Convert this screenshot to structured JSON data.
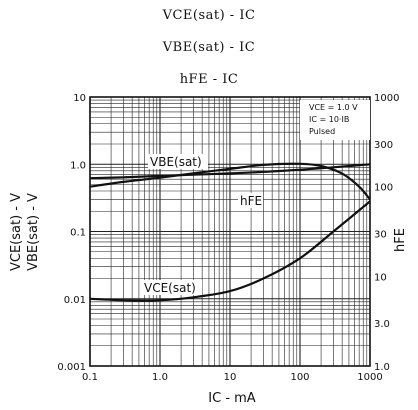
{
  "titles": {
    "line1": "VCE(sat) - IC",
    "line2": "VBE(sat) - IC",
    "line3": "hFE - IC"
  },
  "chart_data": {
    "type": "line",
    "x_scale": "log",
    "xlim": [
      0.1,
      1000
    ],
    "ylim_left": [
      0.001,
      10
    ],
    "ylim_right": [
      1,
      1000
    ],
    "y_scale": "log",
    "grid": true,
    "x_ticks": [
      "0.1",
      "1.0",
      "10",
      "100",
      "1000"
    ],
    "x_tick_values": [
      0.1,
      1,
      10,
      100,
      1000
    ],
    "y_left_ticks": [
      "10",
      "1.0",
      "0.1",
      "0.01",
      "0.001"
    ],
    "y_left_tick_values": [
      10,
      1,
      0.1,
      0.01,
      0.001
    ],
    "y_right_ticks": [
      "1000",
      "300",
      "100",
      "30",
      "10",
      "3.0",
      "1.0"
    ],
    "y_right_tick_values": [
      1000,
      300,
      100,
      30,
      10,
      3,
      1
    ],
    "xlabel": "IC - mA",
    "ylabel_left_line1": "VCE(sat) - V",
    "ylabel_left_line2": "VBE(sat) - V",
    "ylabel_right": "hFE",
    "conditions": [
      "VCE = 1.0 V",
      "IC = 10·IB",
      "Pulsed"
    ],
    "series": [
      {
        "name": "VBE(sat)",
        "axis": "left",
        "x": [
          0.1,
          0.3,
          1,
          3,
          10,
          30,
          100,
          300,
          1000
        ],
        "y": [
          0.62,
          0.64,
          0.67,
          0.7,
          0.73,
          0.77,
          0.83,
          0.9,
          1.0
        ]
      },
      {
        "name": "hFE",
        "axis": "right",
        "x": [
          0.1,
          0.3,
          1,
          3,
          10,
          30,
          100,
          200,
          400,
          700,
          1000
        ],
        "y": [
          100,
          113,
          126,
          141,
          158,
          175,
          180,
          170,
          140,
          100,
          72
        ]
      },
      {
        "name": "VCE(sat)",
        "axis": "left",
        "x": [
          0.1,
          0.3,
          1,
          3,
          10,
          30,
          100,
          300,
          1000
        ],
        "y": [
          0.01,
          0.0095,
          0.0095,
          0.0105,
          0.013,
          0.02,
          0.04,
          0.1,
          0.28
        ]
      }
    ]
  }
}
